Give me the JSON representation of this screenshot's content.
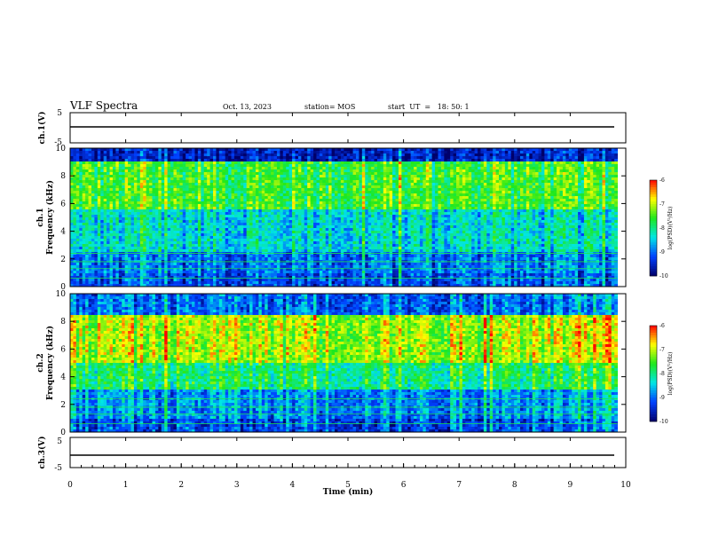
{
  "header": {
    "title": "VLF Spectra",
    "date": "Oct. 13, 2023",
    "station": "station= MOS",
    "start": "start  UT  =   18: 50: 1"
  },
  "colors": {
    "low": "#00006b",
    "mid_low": "#0040ff",
    "mid": "#00e6e6",
    "mid_high": "#1ee81e",
    "high": "#ffff00",
    "peak": "#ff0000"
  },
  "chart_data": [
    {
      "type": "line",
      "panel": "ch1-waveform",
      "ylabel": "ch.1(V)",
      "ylim": [
        -5,
        5
      ],
      "yticks": [
        "5",
        "-5"
      ],
      "xlim": [
        0,
        10
      ],
      "values_description_level": 0
    },
    {
      "type": "heatmap",
      "panel": "ch1-spectrogram",
      "ylabel_lines": [
        "ch.1",
        "Frequency (kHz)"
      ],
      "ylim": [
        0,
        10
      ],
      "yticks": [
        "0",
        "2",
        "4",
        "6",
        "8",
        "10"
      ],
      "xlim": [
        0,
        9.85
      ],
      "colorbar": {
        "label": "log(PSD)(V²/Hz)",
        "range": [
          -10,
          -6
        ],
        "ticks": [
          "-6",
          "-7",
          "-8",
          "-9",
          "-10"
        ]
      },
      "bands": [
        {
          "from": 0,
          "to": 1.0,
          "level": -9.2
        },
        {
          "from": 1.0,
          "to": 2.5,
          "level": -9.0
        },
        {
          "from": 2.5,
          "to": 5.5,
          "level": -8.4
        },
        {
          "from": 5.5,
          "to": 9.0,
          "level": -7.6
        },
        {
          "from": 9.0,
          "to": 10.0,
          "level": -9.6
        }
      ]
    },
    {
      "type": "heatmap",
      "panel": "ch2-spectrogram",
      "ylabel_lines": [
        "ch.2",
        "Frequency (kHz)"
      ],
      "ylim": [
        0,
        10
      ],
      "yticks": [
        "0",
        "2",
        "4",
        "6",
        "8",
        "10"
      ],
      "xlim": [
        0,
        9.85
      ],
      "colorbar": {
        "label": "log(PSD)(V²/Hz)",
        "range": [
          -10,
          -6
        ],
        "ticks": [
          "-6",
          "-7",
          "-8",
          "-9",
          "-10"
        ]
      },
      "bands": [
        {
          "from": 0,
          "to": 1.0,
          "level": -9.2
        },
        {
          "from": 1.0,
          "to": 3.0,
          "level": -8.8
        },
        {
          "from": 3.0,
          "to": 5.0,
          "level": -7.9
        },
        {
          "from": 5.0,
          "to": 8.5,
          "level": -7.1
        },
        {
          "from": 8.5,
          "to": 10.0,
          "level": -9.0
        }
      ]
    },
    {
      "type": "line",
      "panel": "ch3-waveform",
      "ylabel": "ch.3(V)",
      "ylim": [
        -5,
        5
      ],
      "yticks": [
        "5",
        "-5"
      ],
      "xlim": [
        0,
        10
      ],
      "values_description_level": 0
    }
  ],
  "xaxis": {
    "label": "Time (min)",
    "ticks": [
      "0",
      "1",
      "2",
      "3",
      "4",
      "5",
      "6",
      "7",
      "8",
      "9",
      "10"
    ]
  }
}
